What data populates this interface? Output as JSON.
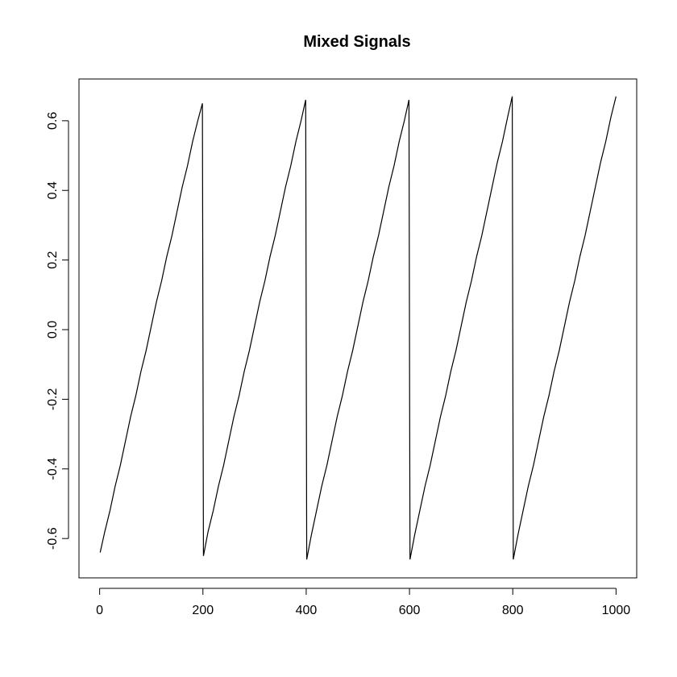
{
  "chart_data": {
    "type": "line",
    "title": "Mixed Signals",
    "color": "#000000",
    "x": [
      1,
      10,
      20,
      30,
      40,
      50,
      60,
      70,
      80,
      90,
      100,
      110,
      120,
      130,
      140,
      150,
      160,
      170,
      180,
      190,
      199,
      200,
      201,
      210,
      220,
      230,
      240,
      250,
      260,
      270,
      280,
      290,
      300,
      310,
      320,
      330,
      340,
      350,
      360,
      370,
      380,
      390,
      399,
      400,
      401,
      410,
      420,
      430,
      440,
      450,
      460,
      470,
      480,
      490,
      500,
      510,
      520,
      530,
      540,
      550,
      560,
      570,
      580,
      590,
      599,
      600,
      601,
      610,
      620,
      630,
      640,
      650,
      660,
      670,
      680,
      690,
      700,
      710,
      720,
      730,
      740,
      750,
      760,
      770,
      780,
      790,
      799,
      800,
      801,
      810,
      820,
      830,
      840,
      850,
      860,
      870,
      880,
      890,
      900,
      910,
      920,
      930,
      940,
      950,
      960,
      970,
      980,
      990,
      1000
    ],
    "values": [
      -0.64,
      -0.58,
      -0.52,
      -0.45,
      -0.39,
      -0.32,
      -0.25,
      -0.19,
      -0.12,
      -0.06,
      0.01,
      0.08,
      0.14,
      0.21,
      0.27,
      0.34,
      0.41,
      0.47,
      0.54,
      0.6,
      0.65,
      0,
      -0.65,
      -0.58,
      -0.52,
      -0.45,
      -0.39,
      -0.32,
      -0.25,
      -0.19,
      -0.12,
      -0.06,
      0.01,
      0.08,
      0.14,
      0.21,
      0.27,
      0.34,
      0.41,
      0.47,
      0.54,
      0.6,
      0.66,
      0,
      -0.66,
      -0.59,
      -0.52,
      -0.45,
      -0.39,
      -0.32,
      -0.25,
      -0.19,
      -0.12,
      -0.06,
      0.01,
      0.08,
      0.14,
      0.21,
      0.27,
      0.34,
      0.41,
      0.47,
      0.54,
      0.6,
      0.66,
      0,
      -0.66,
      -0.59,
      -0.52,
      -0.45,
      -0.39,
      -0.32,
      -0.25,
      -0.19,
      -0.12,
      -0.06,
      0.01,
      0.08,
      0.14,
      0.21,
      0.27,
      0.34,
      0.41,
      0.48,
      0.54,
      0.61,
      0.67,
      0,
      -0.66,
      -0.59,
      -0.52,
      -0.45,
      -0.39,
      -0.32,
      -0.25,
      -0.19,
      -0.12,
      -0.06,
      0.01,
      0.08,
      0.14,
      0.21,
      0.27,
      0.34,
      0.41,
      0.48,
      0.54,
      0.61,
      0.67
    ],
    "xlim": [
      -40,
      1040
    ],
    "ylim": [
      -0.713,
      0.72
    ],
    "xticks": [
      0,
      200,
      400,
      600,
      800,
      1000
    ],
    "yticks": [
      -0.6,
      -0.4,
      -0.2,
      {
        "value": 0,
        "label": "0.0"
      },
      0.2,
      0.4,
      0.6
    ]
  }
}
